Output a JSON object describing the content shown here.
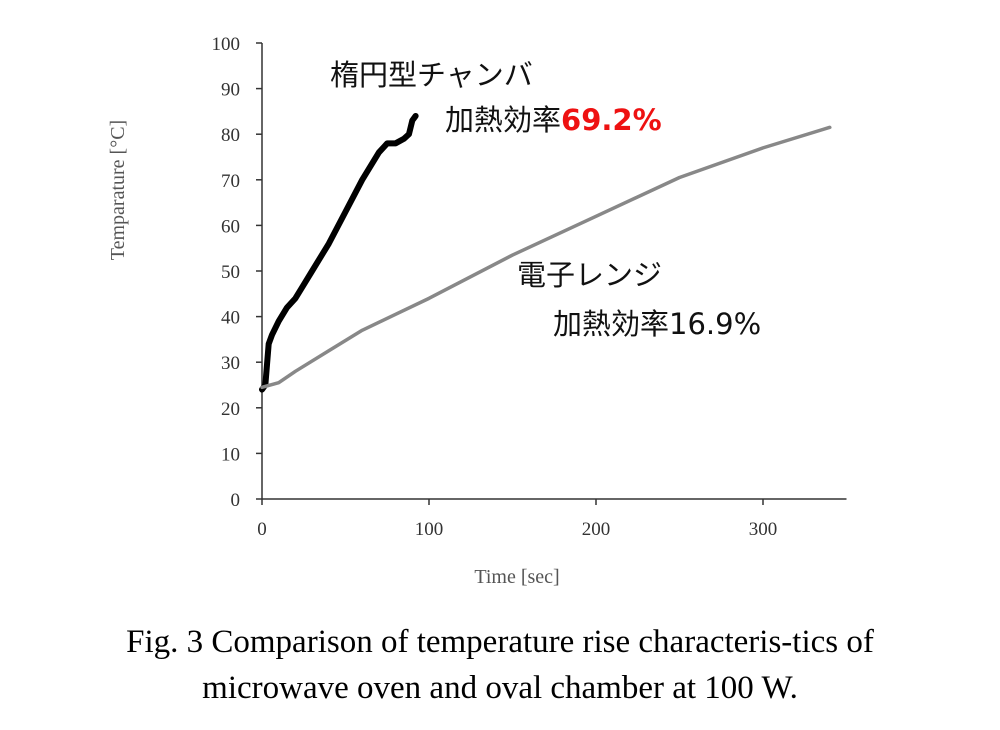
{
  "chart_data": {
    "type": "line",
    "x_label": "Time [sec]",
    "y_label": "Temparature [°C]",
    "xlim": [
      0,
      350
    ],
    "xticks": [
      0,
      100,
      200,
      300
    ],
    "ylim": [
      0,
      100
    ],
    "yticks": [
      0,
      10,
      20,
      30,
      40,
      50,
      60,
      70,
      80,
      90,
      100
    ],
    "series": [
      {
        "name": "楕円型チャンバ",
        "color": "#000000",
        "efficiency_label": "加熱効率",
        "efficiency": "69.2%",
        "efficiency_color": "#ee1111",
        "x": [
          0,
          2,
          4,
          6,
          10,
          15,
          20,
          25,
          30,
          40,
          50,
          60,
          70,
          75,
          80,
          85,
          88,
          90,
          92
        ],
        "values": [
          24,
          25,
          34,
          36,
          39,
          42,
          44,
          47,
          50,
          56,
          63,
          70,
          76,
          78,
          78,
          79,
          80,
          83,
          84
        ]
      },
      {
        "name": "電子レンジ",
        "color": "#888888",
        "efficiency_label": "加熱効率",
        "efficiency": "16.9%",
        "efficiency_color": "#111111",
        "x": [
          0,
          10,
          20,
          40,
          60,
          80,
          100,
          150,
          200,
          250,
          300,
          340
        ],
        "values": [
          24.5,
          25.5,
          28,
          32.5,
          37,
          40.5,
          44,
          53.5,
          62,
          70.5,
          77,
          81.5
        ]
      }
    ],
    "caption": [
      "Fig. 3  Comparison of temperature rise characteris-tics of",
      "microwave oven and oval chamber at 100 W."
    ]
  }
}
